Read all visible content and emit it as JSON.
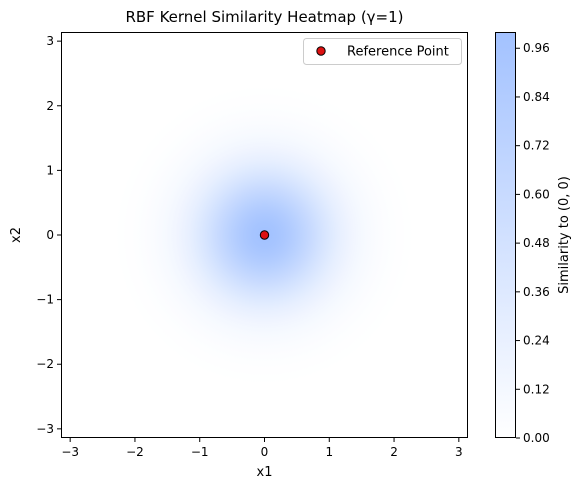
{
  "chart_data": {
    "type": "heatmap",
    "title": "RBF Kernel Similarity Heatmap (γ=1)",
    "xlabel": "x1",
    "ylabel": "x2",
    "xlim": [
      -3.1416,
      3.1416
    ],
    "ylim": [
      -3.1416,
      3.1416
    ],
    "x_ticks": [
      -3,
      -2,
      -1,
      0,
      1,
      2,
      3
    ],
    "y_ticks": [
      -3,
      -2,
      -1,
      0,
      1,
      2,
      3
    ],
    "x_tick_labels": [
      "−3",
      "−2",
      "−1",
      "0",
      "1",
      "2",
      "3"
    ],
    "y_tick_labels": [
      "−3",
      "−2",
      "−1",
      "0",
      "1",
      "2",
      "3"
    ],
    "function": "exp(-gamma * (x1^2 + x2^2))",
    "gamma": 1,
    "reference_point": {
      "x": 0,
      "y": 0,
      "color": "#dd1111",
      "edge_color": "#000000"
    },
    "colorbar": {
      "label": "Similarity to (0, 0)",
      "range": [
        0,
        1
      ],
      "ticks": [
        0.0,
        0.12,
        0.24,
        0.36,
        0.48,
        0.6,
        0.72,
        0.84,
        0.96
      ],
      "tick_labels": [
        "0.00",
        "0.12",
        "0.24",
        "0.36",
        "0.48",
        "0.60",
        "0.72",
        "0.84",
        "0.96"
      ],
      "color_low": "#ffffff",
      "color_high": "#a3c2ff"
    },
    "legend": {
      "placement": "top-right",
      "entries": [
        {
          "label": "Reference Point",
          "marker": "circle",
          "color": "#dd1111"
        }
      ]
    },
    "grid": false
  }
}
